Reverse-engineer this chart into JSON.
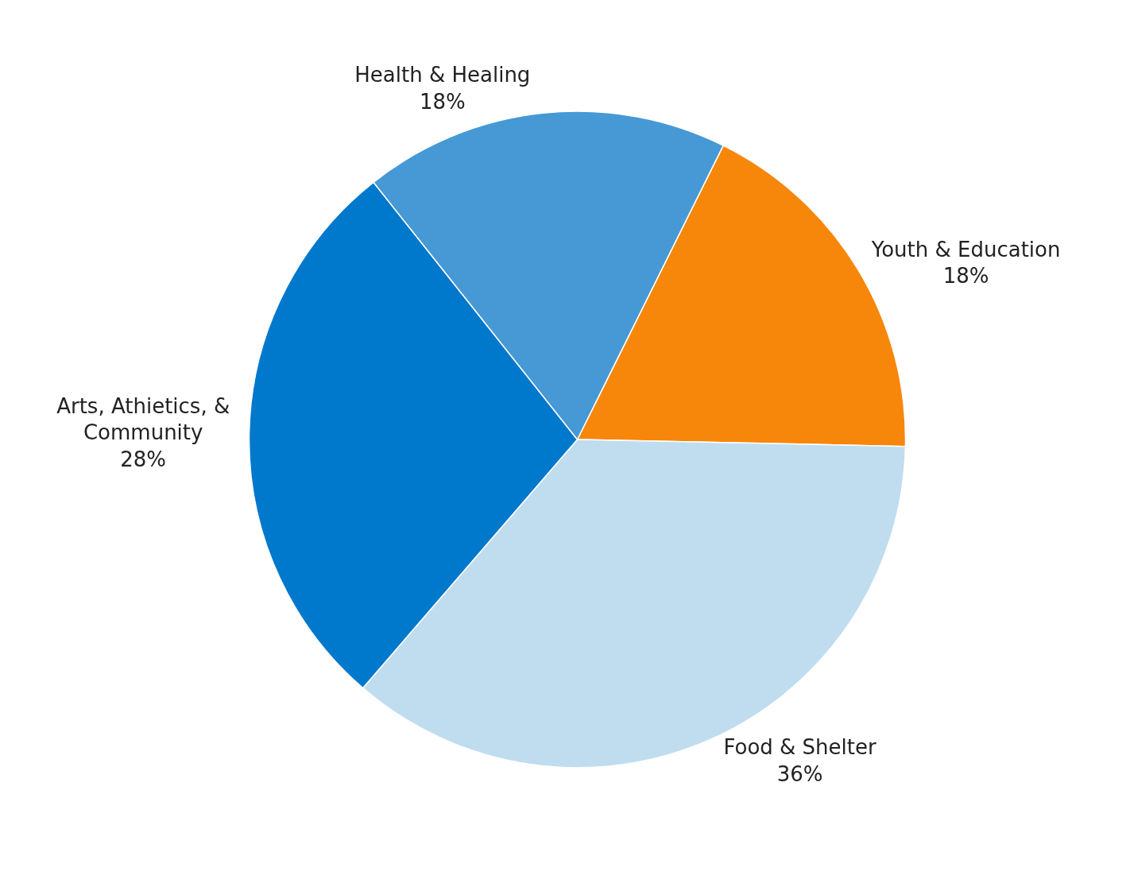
{
  "chart_data": {
    "type": "pie",
    "categories": [
      "Youth & Education",
      "Food & Shelter",
      "Arts, Athietics, &\nCommunity",
      "Health & Healing"
    ],
    "values": [
      18,
      36,
      28,
      18
    ],
    "value_labels": [
      "18%",
      "36%",
      "28%",
      "18%"
    ],
    "colors": [
      "#f7870a",
      "#c0ddf0",
      "#0078cc",
      "#4699d4"
    ],
    "legend": false
  }
}
